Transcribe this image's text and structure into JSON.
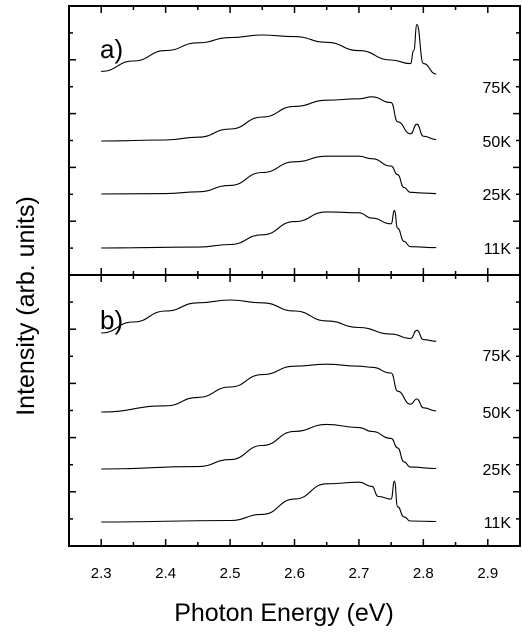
{
  "chart_data": {
    "type": "line",
    "xlabel": "Photon Energy (eV)",
    "ylabel": "Intensity  (arb. units)",
    "xlim": [
      2.25,
      2.95
    ],
    "x_ticks": [
      "2.3",
      "2.4",
      "2.5",
      "2.6",
      "2.7",
      "2.8",
      "2.9"
    ],
    "y_tick_labels": "none",
    "grid": false,
    "legend": "none (curves labeled at right end)",
    "panels": [
      {
        "label": "a)",
        "series": [
          {
            "name": "75K",
            "x": [
              2.3,
              2.35,
              2.4,
              2.45,
              2.5,
              2.55,
              2.6,
              2.65,
              2.7,
              2.75,
              2.78,
              2.785,
              2.79,
              2.8,
              2.82
            ],
            "y": [
              0.3,
              0.5,
              0.7,
              0.85,
              0.95,
              1.0,
              0.97,
              0.86,
              0.7,
              0.52,
              0.45,
              0.7,
              1.2,
              0.45,
              0.25
            ]
          },
          {
            "name": "50K",
            "x": [
              2.3,
              2.4,
              2.45,
              2.5,
              2.55,
              2.6,
              2.65,
              2.7,
              2.72,
              2.75,
              2.76,
              2.78,
              2.79,
              2.8,
              2.82
            ],
            "y": [
              0.0,
              0.02,
              0.08,
              0.25,
              0.5,
              0.72,
              0.85,
              0.88,
              0.92,
              0.8,
              0.4,
              0.15,
              0.35,
              0.1,
              0.03
            ]
          },
          {
            "name": "25K",
            "x": [
              2.3,
              2.4,
              2.45,
              2.5,
              2.55,
              2.6,
              2.65,
              2.7,
              2.72,
              2.75,
              2.76,
              2.77,
              2.78,
              2.8,
              2.82
            ],
            "y": [
              0.0,
              0.01,
              0.05,
              0.2,
              0.5,
              0.75,
              0.88,
              0.88,
              0.82,
              0.65,
              0.45,
              0.15,
              0.04,
              0.02,
              0.01
            ]
          },
          {
            "name": "11K",
            "x": [
              2.3,
              2.45,
              2.5,
              2.55,
              2.6,
              2.65,
              2.7,
              2.72,
              2.75,
              2.755,
              2.76,
              2.77,
              2.78,
              2.82
            ],
            "y": [
              0.0,
              0.02,
              0.08,
              0.3,
              0.6,
              0.82,
              0.8,
              0.68,
              0.55,
              0.85,
              0.45,
              0.15,
              0.03,
              0.01
            ]
          }
        ]
      },
      {
        "label": "b)",
        "series": [
          {
            "name": "75K",
            "x": [
              2.3,
              2.35,
              2.4,
              2.45,
              2.5,
              2.55,
              2.6,
              2.65,
              2.7,
              2.75,
              2.78,
              2.79,
              2.8,
              2.82
            ],
            "y": [
              0.4,
              0.6,
              0.8,
              0.95,
              1.0,
              0.95,
              0.8,
              0.62,
              0.5,
              0.38,
              0.3,
              0.45,
              0.28,
              0.25
            ]
          },
          {
            "name": "50K",
            "x": [
              2.3,
              2.4,
              2.45,
              2.5,
              2.55,
              2.6,
              2.65,
              2.7,
              2.72,
              2.75,
              2.76,
              2.78,
              2.79,
              2.8,
              2.82
            ],
            "y": [
              0.0,
              0.12,
              0.28,
              0.48,
              0.72,
              0.88,
              0.92,
              0.88,
              0.86,
              0.75,
              0.4,
              0.15,
              0.25,
              0.08,
              0.02
            ]
          },
          {
            "name": "25K",
            "x": [
              2.3,
              2.45,
              2.5,
              2.55,
              2.6,
              2.65,
              2.7,
              2.72,
              2.75,
              2.76,
              2.77,
              2.78,
              2.82
            ],
            "y": [
              0.0,
              0.05,
              0.2,
              0.5,
              0.8,
              0.95,
              0.88,
              0.8,
              0.65,
              0.45,
              0.15,
              0.04,
              0.01
            ]
          },
          {
            "name": "11K",
            "x": [
              2.3,
              2.5,
              2.55,
              2.6,
              2.65,
              2.7,
              2.72,
              2.73,
              2.75,
              2.755,
              2.76,
              2.77,
              2.78,
              2.82
            ],
            "y": [
              0.0,
              0.03,
              0.15,
              0.45,
              0.75,
              0.78,
              0.7,
              0.5,
              0.45,
              0.8,
              0.3,
              0.1,
              0.02,
              0.01
            ]
          }
        ]
      }
    ]
  }
}
